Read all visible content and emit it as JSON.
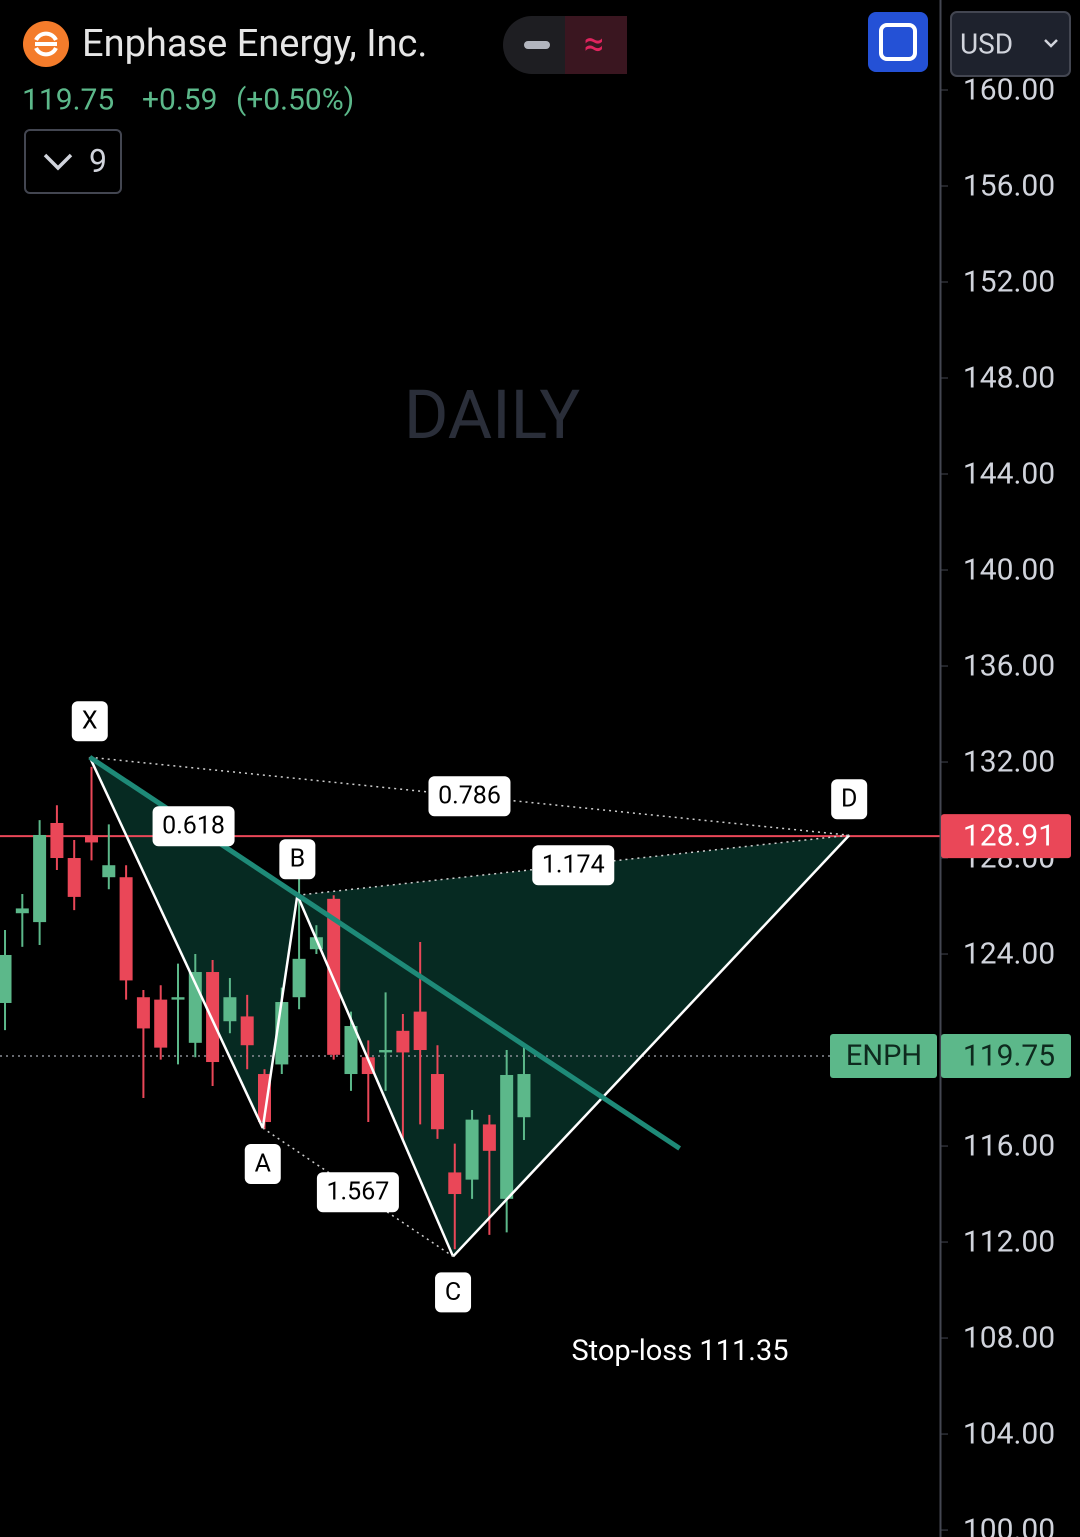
{
  "header": {
    "title": "Enphase Energy, Inc.",
    "change": "+0.59",
    "change_pct": "(+0.50%)",
    "indicators": "9",
    "currency": "USD",
    "interval": "DAILY"
  },
  "chart_data": {
    "type": "candlestick",
    "symbol": "ENPH",
    "categories": [
      null,
      null,
      null,
      null,
      null,
      null,
      null,
      null,
      null,
      null,
      null,
      null,
      null,
      null,
      null,
      null,
      null,
      null,
      null,
      null,
      null,
      null,
      null,
      null,
      null,
      null,
      null,
      null,
      null,
      null,
      null
    ],
    "open": [
      121.96,
      125.7,
      125.33,
      129.46,
      128.0,
      128.9,
      127.2,
      127.2,
      122.2,
      122.1,
      122.1,
      120.3,
      123.25,
      121.2,
      121.4,
      119.0,
      119.4,
      122.2,
      124.2,
      126.3,
      119.0,
      119.7,
      119.9,
      120.8,
      121.6,
      119.0,
      114.9,
      114.6,
      116.9,
      113.8,
      117.2
    ],
    "high": [
      125.0,
      126.5,
      129.58,
      130.2,
      128.75,
      131.8,
      129.4,
      127.7,
      122.5,
      122.7,
      123.6,
      124.0,
      123.75,
      123.0,
      122.3,
      119.2,
      122.6,
      127.3,
      125.2,
      126.45,
      121.6,
      120.4,
      122.4,
      121.5,
      124.5,
      120.2,
      116.1,
      117.5,
      117.3,
      120.0,
      120.2
    ],
    "low": [
      120.83,
      124.3,
      124.375,
      127.5,
      125.83,
      127.9,
      126.7,
      122.1,
      118.0,
      119.6,
      119.4,
      119.7,
      118.5,
      120.7,
      119.2,
      116.7,
      119.0,
      121.7,
      124.0,
      119.6,
      118.3,
      117.0,
      118.3,
      116.2,
      116.9,
      116.3,
      111.7,
      113.8,
      112.3,
      112.4,
      116.25
    ],
    "close": [
      123.96,
      125.9,
      128.96,
      128.0,
      126.38,
      128.65,
      127.7,
      122.9,
      120.9,
      120.1,
      122.2,
      123.25,
      119.5,
      122.2,
      120.2,
      117.0,
      122.0,
      123.8,
      124.7,
      119.8,
      121.0,
      119.0,
      120.0,
      119.9,
      120.0,
      116.7,
      114.0,
      117.1,
      115.8,
      118.96,
      119.0
    ],
    "up_color": "#5cb88a",
    "down_color": "#ea4758",
    "xlim": [
      -0.29,
      54.05
    ],
    "ylim": [
      99.71,
      163.75
    ],
    "yticks": [
      {
        "value": 100,
        "label": "100.00"
      },
      {
        "value": 104,
        "label": "104.00"
      },
      {
        "value": 108,
        "label": "108.00"
      },
      {
        "value": 112,
        "label": "112.00"
      },
      {
        "value": 116,
        "label": "116.00"
      },
      {
        "value": 120,
        "label": "120.00"
      },
      {
        "value": 124,
        "label": "124.00"
      },
      {
        "value": 128,
        "label": "128.00"
      },
      {
        "value": 132,
        "label": "132.00"
      },
      {
        "value": 136,
        "label": "136.00"
      },
      {
        "value": 140,
        "label": "140.00"
      },
      {
        "value": 144,
        "label": "144.00"
      },
      {
        "value": 148,
        "label": "148.00"
      },
      {
        "value": 152,
        "label": "152.00"
      },
      {
        "value": 156,
        "label": "156.00"
      },
      {
        "value": 160,
        "label": "160.00"
      }
    ],
    "last_price": 119.75,
    "alert_price": 128.91,
    "pattern": {
      "fill": "#062a22",
      "points": [
        {
          "label": "X",
          "x": 4.9,
          "y": 132.2
        },
        {
          "label": "A",
          "x": 14.9,
          "y": 116.75
        },
        {
          "label": "B",
          "x": 16.9,
          "y": 126.45
        },
        {
          "label": "C",
          "x": 25.9,
          "y": 111.4
        },
        {
          "label": "D",
          "x": 48.8,
          "y": 128.95
        }
      ],
      "ratios": [
        "0.618",
        "1.567",
        "1.174",
        "0.786"
      ]
    },
    "trendline": {
      "x": [
        4.9,
        39.0
      ],
      "y": [
        132.2,
        115.9
      ],
      "color": "#1e8a78"
    },
    "annotation": "Stop-loss 111.35"
  }
}
